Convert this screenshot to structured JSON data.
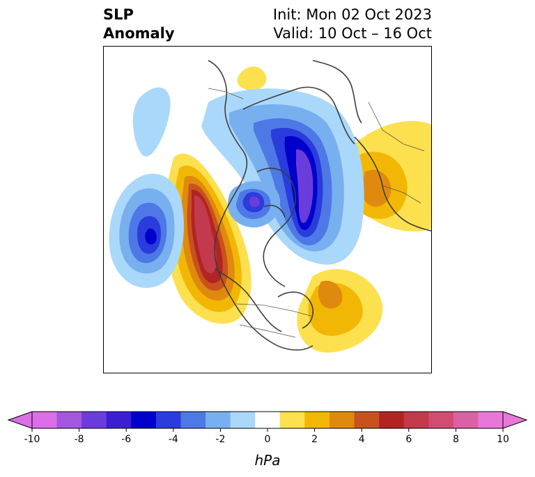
{
  "header": {
    "title_line1": "SLP",
    "title_line2": "Anomaly",
    "init_text": "Init: Mon 02 Oct 2023",
    "valid_text": "Valid: 10 Oct – 16 Oct"
  },
  "map": {
    "projection": "north-polar-stereographic",
    "variable": "SLP anomaly",
    "anomaly_features": [
      {
        "name": "ridge-northeast-pacific",
        "sign": "positive",
        "peak_hpa": 7
      },
      {
        "name": "trough-arctic-siberia",
        "sign": "negative",
        "peak_hpa": -6
      },
      {
        "name": "trough-north-pacific",
        "sign": "negative",
        "peak_hpa": -6
      },
      {
        "name": "trough-canadian-arctic",
        "sign": "negative",
        "peak_hpa": -5
      },
      {
        "name": "ridge-north-atlantic",
        "sign": "positive",
        "peak_hpa": 3
      },
      {
        "name": "ridge-east-asia",
        "sign": "positive",
        "peak_hpa": 3
      },
      {
        "name": "ridge-europe-small",
        "sign": "positive",
        "peak_hpa": 1
      }
    ]
  },
  "colorbar": {
    "unit": "hPa",
    "min": -10,
    "max": 10,
    "extend": "both",
    "tick_labels": [
      "-10",
      "-8",
      "-6",
      "-4",
      "-2",
      "0",
      "2",
      "4",
      "6",
      "8",
      "10"
    ],
    "colors": [
      "#dc6ee8",
      "#a356de",
      "#6b3cdc",
      "#3c1ed2",
      "#0000cc",
      "#2a3cdc",
      "#4d78e6",
      "#78afef",
      "#aad8fa",
      "#ffffff",
      "#fce04e",
      "#f2b705",
      "#df8a0e",
      "#c8521d",
      "#b22323",
      "#c23a4c",
      "#d14b73",
      "#da62a3",
      "#e878d8"
    ]
  }
}
